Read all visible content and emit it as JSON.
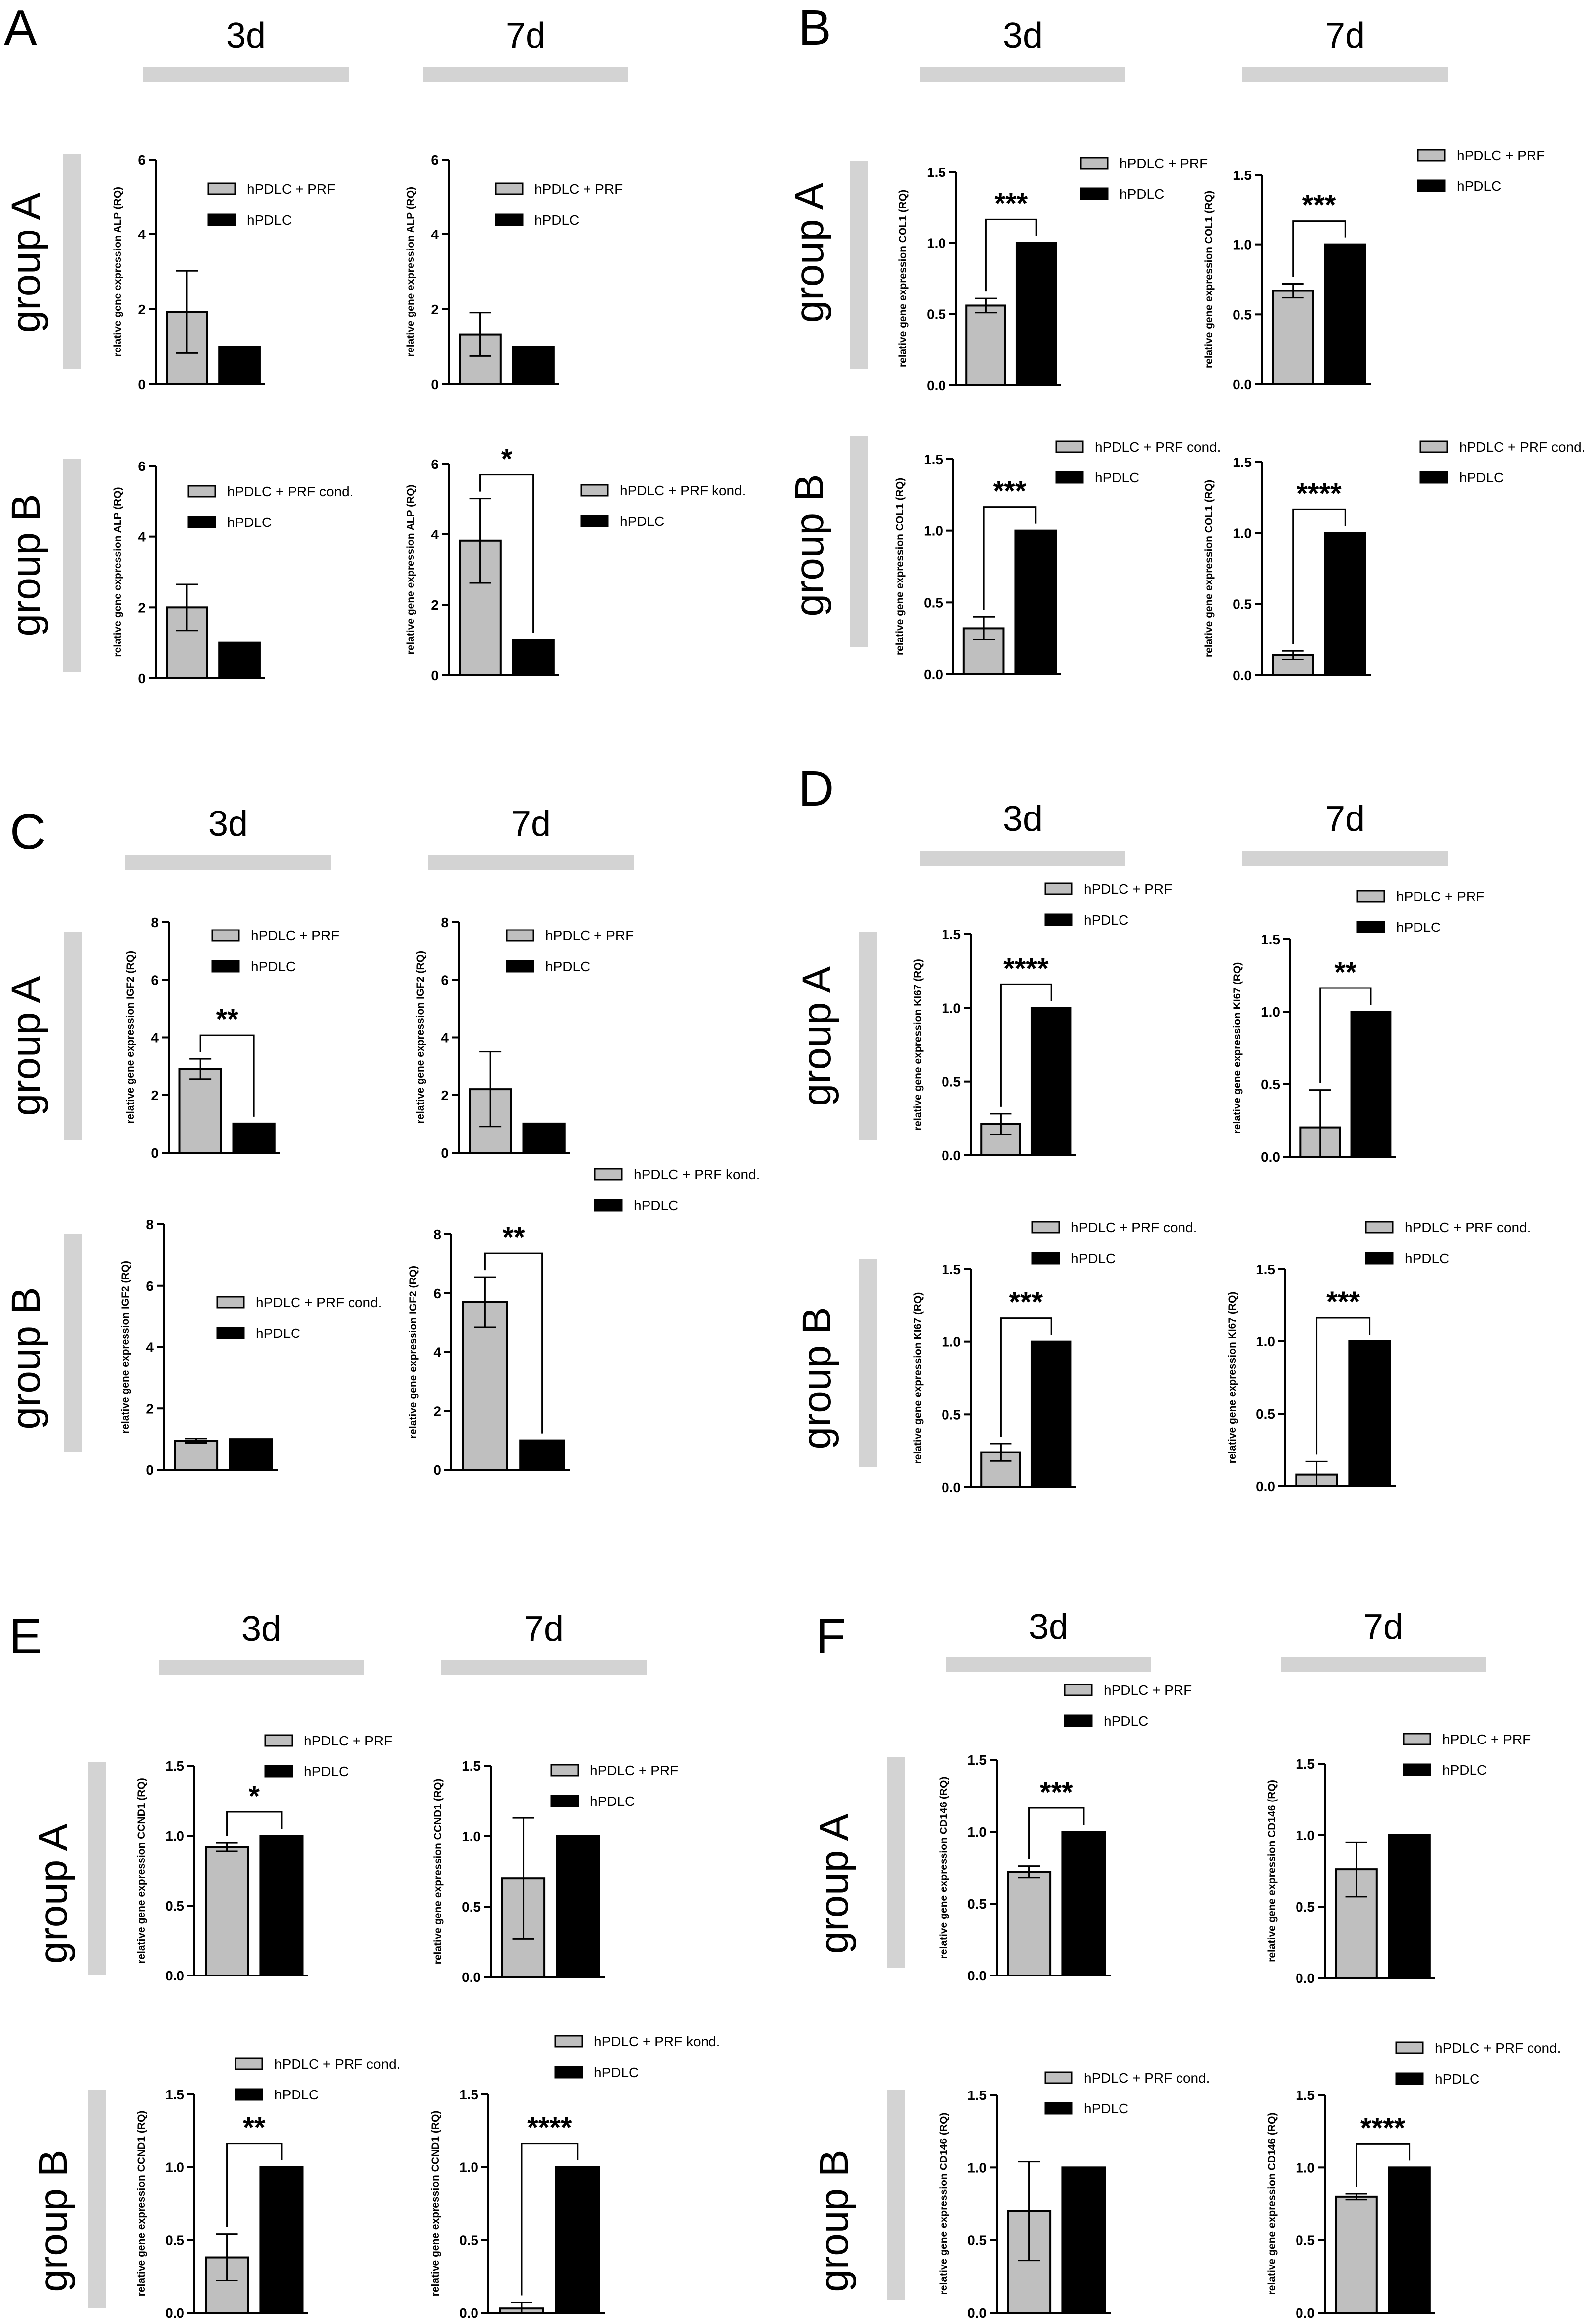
{
  "figure": {
    "colors": {
      "treated": "#bfbfbf",
      "control": "#000000",
      "header_bar": "#d3d3d3",
      "axis": "#000000"
    },
    "panels": [
      {
        "letter": "A",
        "gene": "ALP",
        "days": [
          "3d",
          "7d"
        ],
        "groups": [
          "group A",
          "group B"
        ]
      },
      {
        "letter": "B",
        "gene": "COL1",
        "days": [
          "3d",
          "7d"
        ],
        "groups": [
          "group A",
          "group B"
        ]
      },
      {
        "letter": "C",
        "gene": "IGF2",
        "days": [
          "3d",
          "7d"
        ],
        "groups": [
          "group A",
          "group B"
        ]
      },
      {
        "letter": "D",
        "gene": "KI67",
        "days": [
          "3d",
          "7d"
        ],
        "groups": [
          "group A",
          "group B"
        ]
      },
      {
        "letter": "E",
        "gene": "CCND1",
        "days": [
          "3d",
          "7d"
        ],
        "groups": [
          "group A",
          "group B"
        ]
      },
      {
        "letter": "F",
        "gene": "CD146",
        "days": [
          "3d",
          "7d"
        ],
        "groups": [
          "group A",
          "group B"
        ]
      }
    ]
  },
  "chart_data": [
    {
      "type": "bar",
      "panel": "A",
      "group": "group A",
      "day": "3d",
      "gene": "ALP",
      "ylabel": "relative gene expression ALP (RQ)",
      "ylim": [
        0,
        6
      ],
      "yticks": [
        "0",
        "2",
        "4",
        "6"
      ],
      "legend": [
        "hPDLC + PRF",
        "hPDLC"
      ],
      "values": [
        1.93,
        1.0
      ],
      "errors": [
        1.1,
        0
      ],
      "significance": ""
    },
    {
      "type": "bar",
      "panel": "A",
      "group": "group A",
      "day": "7d",
      "gene": "ALP",
      "ylabel": "relative gene expression ALP (RQ)",
      "ylim": [
        0,
        6
      ],
      "yticks": [
        "0",
        "2",
        "4",
        "6"
      ],
      "legend": [
        "hPDLC + PRF",
        "hPDLC"
      ],
      "values": [
        1.33,
        1.0
      ],
      "errors": [
        0.58,
        0
      ],
      "significance": ""
    },
    {
      "type": "bar",
      "panel": "A",
      "group": "group B",
      "day": "3d",
      "gene": "ALP",
      "ylabel": "relative gene expression ALP (RQ)",
      "ylim": [
        0,
        6
      ],
      "yticks": [
        "0",
        "2",
        "4",
        "6"
      ],
      "legend": [
        "hPDLC + PRF cond.",
        "hPDLC"
      ],
      "values": [
        2.0,
        1.0
      ],
      "errors": [
        0.65,
        0
      ],
      "significance": ""
    },
    {
      "type": "bar",
      "panel": "A",
      "group": "group B",
      "day": "7d",
      "gene": "ALP",
      "ylabel": "relative gene expression ALP (RQ)",
      "ylim": [
        0,
        6
      ],
      "yticks": [
        "0",
        "2",
        "4",
        "6"
      ],
      "legend": [
        "hPDLC + PRF kond.",
        "hPDLC"
      ],
      "values": [
        3.82,
        1.0
      ],
      "errors": [
        1.2,
        0
      ],
      "significance": "*"
    },
    {
      "type": "bar",
      "panel": "B",
      "group": "group A",
      "day": "3d",
      "gene": "COL1",
      "ylabel": "relative gene expression COL1 (RQ)",
      "ylim": [
        0,
        1.5
      ],
      "yticks": [
        "0.0",
        "0.5",
        "1.0",
        "1.5"
      ],
      "legend": [
        "hPDLC + PRF",
        "hPDLC"
      ],
      "values": [
        0.56,
        1.0
      ],
      "errors": [
        0.05,
        0
      ],
      "significance": "***"
    },
    {
      "type": "bar",
      "panel": "B",
      "group": "group A",
      "day": "7d",
      "gene": "COL1",
      "ylabel": "relative gene expression COL1 (RQ)",
      "ylim": [
        0,
        1.5
      ],
      "yticks": [
        "0.0",
        "0.5",
        "1.0",
        "1.5"
      ],
      "legend": [
        "hPDLC + PRF",
        "hPDLC"
      ],
      "values": [
        0.67,
        1.0
      ],
      "errors": [
        0.05,
        0
      ],
      "significance": "***"
    },
    {
      "type": "bar",
      "panel": "B",
      "group": "group B",
      "day": "3d",
      "gene": "COL1",
      "ylabel": "relative gene expression COL1 (RQ)",
      "ylim": [
        0,
        1.5
      ],
      "yticks": [
        "0.0",
        "0.5",
        "1.0",
        "1.5"
      ],
      "legend": [
        "hPDLC + PRF cond.",
        "hPDLC"
      ],
      "values": [
        0.32,
        1.0
      ],
      "errors": [
        0.08,
        0
      ],
      "significance": "***"
    },
    {
      "type": "bar",
      "panel": "B",
      "group": "group B",
      "day": "7d",
      "gene": "COL1",
      "ylabel": "relative gene expression COL1 (RQ)",
      "ylim": [
        0,
        1.5
      ],
      "yticks": [
        "0.0",
        "0.5",
        "1.0",
        "1.5"
      ],
      "legend": [
        "hPDLC + PRF cond.",
        "hPDLC"
      ],
      "values": [
        0.14,
        1.0
      ],
      "errors": [
        0.03,
        0
      ],
      "significance": "****"
    },
    {
      "type": "bar",
      "panel": "C",
      "group": "group A",
      "day": "3d",
      "gene": "IGF2",
      "ylabel": "relative gene expression IGF2 (RQ)",
      "ylim": [
        0,
        8
      ],
      "yticks": [
        "0",
        "2",
        "4",
        "6",
        "8"
      ],
      "legend": [
        "hPDLC + PRF",
        "hPDLC"
      ],
      "values": [
        2.9,
        1.0
      ],
      "errors": [
        0.35,
        0
      ],
      "significance": "**"
    },
    {
      "type": "bar",
      "panel": "C",
      "group": "group A",
      "day": "7d",
      "gene": "IGF2",
      "ylabel": "relative gene expression IGF2 (RQ)",
      "ylim": [
        0,
        8
      ],
      "yticks": [
        "0",
        "2",
        "4",
        "6",
        "8"
      ],
      "legend": [
        "hPDLC + PRF",
        "hPDLC"
      ],
      "values": [
        2.2,
        1.0
      ],
      "errors": [
        1.3,
        0
      ],
      "significance": ""
    },
    {
      "type": "bar",
      "panel": "C",
      "group": "group B",
      "day": "3d",
      "gene": "IGF2",
      "ylabel": "relative gene expression IGF2 (RQ)",
      "ylim": [
        0,
        8
      ],
      "yticks": [
        "0",
        "2",
        "4",
        "6",
        "8"
      ],
      "legend": [
        "hPDLC + PRF cond.",
        "hPDLC"
      ],
      "values": [
        0.95,
        1.0
      ],
      "errors": [
        0.07,
        0
      ],
      "significance": ""
    },
    {
      "type": "bar",
      "panel": "C",
      "group": "group B",
      "day": "7d",
      "gene": "IGF2",
      "ylabel": "relative gene expression IGF2 (RQ)",
      "ylim": [
        0,
        8
      ],
      "yticks": [
        "0",
        "2",
        "4",
        "6",
        "8"
      ],
      "legend": [
        "hPDLC + PRF kond.",
        "hPDLC"
      ],
      "values": [
        5.7,
        1.0
      ],
      "errors": [
        0.85,
        0
      ],
      "significance": "**"
    },
    {
      "type": "bar",
      "panel": "D",
      "group": "group A",
      "day": "3d",
      "gene": "KI67",
      "ylabel": "relative gene expression KI67 (RQ)",
      "ylim": [
        0,
        1.5
      ],
      "yticks": [
        "0.0",
        "0.5",
        "1.0",
        "1.5"
      ],
      "legend": [
        "hPDLC + PRF",
        "hPDLC"
      ],
      "values": [
        0.21,
        1.0
      ],
      "errors": [
        0.07,
        0
      ],
      "significance": "****"
    },
    {
      "type": "bar",
      "panel": "D",
      "group": "group A",
      "day": "7d",
      "gene": "KI67",
      "ylabel": "relative gene expression KI67 (RQ)",
      "ylim": [
        0,
        1.5
      ],
      "yticks": [
        "0.0",
        "0.5",
        "1.0",
        "1.5"
      ],
      "legend": [
        "hPDLC + PRF",
        "hPDLC"
      ],
      "values": [
        0.2,
        1.0
      ],
      "errors": [
        0.26,
        0
      ],
      "significance": "**"
    },
    {
      "type": "bar",
      "panel": "D",
      "group": "group B",
      "day": "3d",
      "gene": "KI67",
      "ylabel": "relative gene expression KI67 (RQ)",
      "ylim": [
        0,
        1.5
      ],
      "yticks": [
        "0.0",
        "0.5",
        "1.0",
        "1.5"
      ],
      "legend": [
        "hPDLC + PRF cond.",
        "hPDLC"
      ],
      "values": [
        0.24,
        1.0
      ],
      "errors": [
        0.06,
        0
      ],
      "significance": "***"
    },
    {
      "type": "bar",
      "panel": "D",
      "group": "group B",
      "day": "7d",
      "gene": "KI67",
      "ylabel": "relative gene expression KI67 (RQ)",
      "ylim": [
        0,
        1.5
      ],
      "yticks": [
        "0.0",
        "0.5",
        "1.0",
        "1.5"
      ],
      "legend": [
        "hPDLC + PRF cond.",
        "hPDLC"
      ],
      "values": [
        0.08,
        1.0
      ],
      "errors": [
        0.09,
        0
      ],
      "significance": "***"
    },
    {
      "type": "bar",
      "panel": "E",
      "group": "group A",
      "day": "3d",
      "gene": "CCND1",
      "ylabel": "relative gene expression CCND1 (RQ)",
      "ylim": [
        0,
        1.5
      ],
      "yticks": [
        "0.0",
        "0.5",
        "1.0",
        "1.5"
      ],
      "legend": [
        "hPDLC + PRF",
        "hPDLC"
      ],
      "values": [
        0.92,
        1.0
      ],
      "errors": [
        0.03,
        0
      ],
      "significance": "*"
    },
    {
      "type": "bar",
      "panel": "E",
      "group": "group A",
      "day": "7d",
      "gene": "CCND1",
      "ylabel": "relative gene expression CCND1 (RQ)",
      "ylim": [
        0,
        1.5
      ],
      "yticks": [
        "0.0",
        "0.5",
        "1.0",
        "1.5"
      ],
      "legend": [
        "hPDLC + PRF",
        "hPDLC"
      ],
      "values": [
        0.7,
        1.0
      ],
      "errors": [
        0.43,
        0
      ],
      "significance": ""
    },
    {
      "type": "bar",
      "panel": "E",
      "group": "group B",
      "day": "3d",
      "gene": "CCND1",
      "ylabel": "relative gene expression CCND1 (RQ)",
      "ylim": [
        0,
        1.5
      ],
      "yticks": [
        "0.0",
        "0.5",
        "1.0",
        "1.5"
      ],
      "legend": [
        "hPDLC + PRF cond.",
        "hPDLC"
      ],
      "values": [
        0.38,
        1.0
      ],
      "errors": [
        0.16,
        0
      ],
      "significance": "**"
    },
    {
      "type": "bar",
      "panel": "E",
      "group": "group B",
      "day": "7d",
      "gene": "CCND1",
      "ylabel": "relative gene expression CCND1 (RQ)",
      "ylim": [
        0,
        1.5
      ],
      "yticks": [
        "0.0",
        "0.5",
        "1.0",
        "1.5"
      ],
      "legend": [
        "hPDLC + PRF kond.",
        "hPDLC"
      ],
      "values": [
        0.03,
        1.0
      ],
      "errors": [
        0.04,
        0
      ],
      "significance": "****"
    },
    {
      "type": "bar",
      "panel": "F",
      "group": "group A",
      "day": "3d",
      "gene": "CD146",
      "ylabel": "relative gene expression CD146 (RQ)",
      "ylim": [
        0,
        1.5
      ],
      "yticks": [
        "0.0",
        "0.5",
        "1.0",
        "1.5"
      ],
      "legend": [
        "hPDLC + PRF",
        "hPDLC"
      ],
      "values": [
        0.72,
        1.0
      ],
      "errors": [
        0.04,
        0
      ],
      "significance": "***"
    },
    {
      "type": "bar",
      "panel": "F",
      "group": "group A",
      "day": "7d",
      "gene": "CD146",
      "ylabel": "relative gene expression CD146 (RQ)",
      "ylim": [
        0,
        1.5
      ],
      "yticks": [
        "0.0",
        "0.5",
        "1.0",
        "1.5"
      ],
      "legend": [
        "hPDLC + PRF",
        "hPDLC"
      ],
      "values": [
        0.76,
        1.0
      ],
      "errors": [
        0.19,
        0
      ],
      "significance": ""
    },
    {
      "type": "bar",
      "panel": "F",
      "group": "group B",
      "day": "3d",
      "gene": "CD146",
      "ylabel": "relative gene expression CD146 (RQ)",
      "ylim": [
        0,
        1.5
      ],
      "yticks": [
        "0.0",
        "0.5",
        "1.0",
        "1.5"
      ],
      "legend": [
        "hPDLC + PRF cond.",
        "hPDLC"
      ],
      "values": [
        0.7,
        1.0
      ],
      "errors": [
        0.34,
        0
      ],
      "significance": ""
    },
    {
      "type": "bar",
      "panel": "F",
      "group": "group B",
      "day": "7d",
      "gene": "CD146",
      "ylabel": "relative gene expression CD146 (RQ)",
      "ylim": [
        0,
        1.5
      ],
      "yticks": [
        "0.0",
        "0.5",
        "1.0",
        "1.5"
      ],
      "legend": [
        "hPDLC + PRF cond.",
        "hPDLC"
      ],
      "values": [
        0.8,
        1.0
      ],
      "errors": [
        0.02,
        0
      ],
      "significance": "****"
    }
  ]
}
